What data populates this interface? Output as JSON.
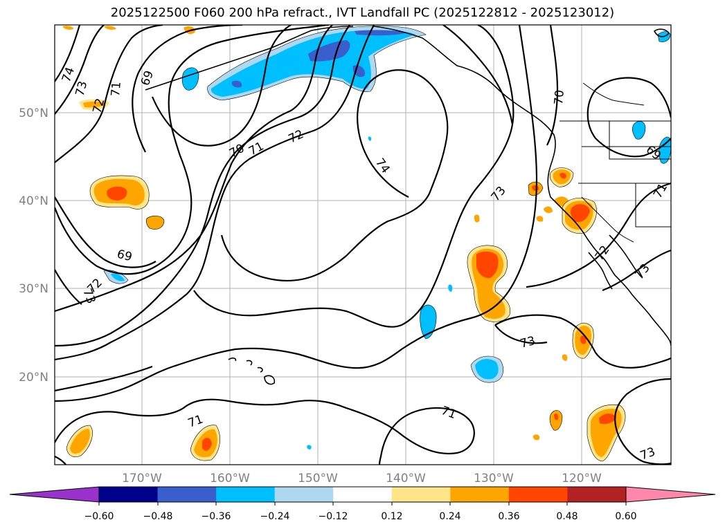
{
  "title": "2025122500 F060 200 hPa refract., IVT Landfall PC (2025122812 - 2025123012)",
  "axes": {
    "lat_labels": [
      "50°N",
      "40°N",
      "30°N",
      "20°N"
    ],
    "lon_labels": [
      "170°W",
      "160°W",
      "150°W",
      "140°W",
      "130°W",
      "120°W"
    ]
  },
  "contour_labels": [
    "74",
    "73",
    "72",
    "71",
    "69",
    "70",
    "71",
    "72",
    "74",
    "73",
    "70",
    "69",
    "72",
    "73",
    "69",
    "72",
    "73",
    "71",
    "71",
    "71",
    "73",
    "73",
    "72",
    "71"
  ],
  "colorbar": {
    "ticks": [
      "−0.60",
      "−0.48",
      "−0.36",
      "−0.24",
      "−0.12",
      "0.12",
      "0.24",
      "0.36",
      "0.48",
      "0.60"
    ],
    "colors": [
      "#9932cc",
      "#00008b",
      "#3a5fcd",
      "#00bfff",
      "#add8f0",
      "#ffffff",
      "#ffe58a",
      "#ffa500",
      "#ff4500",
      "#b22222",
      "#ff88aa"
    ]
  }
}
